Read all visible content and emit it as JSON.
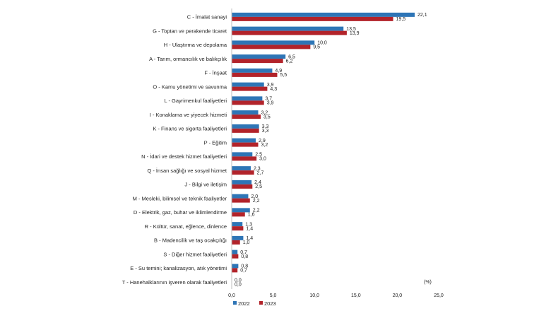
{
  "chart_data": {
    "type": "bar",
    "orientation": "horizontal",
    "categories": [
      "C - İmalat sanayi",
      "G - Toptan ve perakende ticaret",
      "H - Ulaştırma ve depolama",
      "A - Tarım, ormancılık ve balıkçılık",
      "F - İnşaat",
      "O - Kamu yönetimi ve savunma",
      "L - Gayrimenkul faaliyetleri",
      "I - Konaklama ve yiyecek hizmeti",
      "K - Finans ve sigorta faaliyetleri",
      "P - Eğitim",
      "N - İdari ve destek hizmet faaliyetleri",
      "Q - İnsan sağlığı ve sosyal hizmet",
      "J - Bilgi ve iletişim",
      "M - Mesleki, bilimsel ve teknik faaliyetler",
      "D - Elektrik, gaz, buhar ve iklimlendirme",
      "R - Kültür, sanat, eğlence, dinlence",
      "B - Madencilik ve taş ocakçılığı",
      "S - Diğer hizmet faaliyetleri",
      "E - Su temini; kanalizasyon, atık yönetimi",
      "T - Hanehalklarının işveren olarak faaliyetleri"
    ],
    "series": [
      {
        "name": "2022",
        "color": "#2e75b6",
        "values": [
          22.1,
          13.5,
          10.0,
          6.5,
          4.9,
          3.9,
          3.7,
          3.2,
          3.3,
          2.9,
          2.5,
          2.3,
          2.4,
          2.0,
          2.2,
          1.3,
          1.4,
          0.7,
          0.8,
          0.0
        ],
        "labels": [
          "22,1",
          "13,5",
          "10,0",
          "6,5",
          "4,9",
          "3,9",
          "3,7",
          "3,2",
          "3,3",
          "2,9",
          "2,5",
          "2,3",
          "2,4",
          "2,0",
          "2,2",
          "1,3",
          "1,4",
          "0,7",
          "0,8",
          "0,0"
        ]
      },
      {
        "name": "2023",
        "color": "#b2232a",
        "values": [
          19.5,
          13.9,
          9.5,
          6.2,
          5.5,
          4.3,
          3.9,
          3.5,
          3.3,
          3.2,
          3.0,
          2.7,
          2.5,
          2.2,
          1.6,
          1.4,
          1.0,
          0.8,
          0.7,
          0.0
        ],
        "labels": [
          "19,5",
          "13,9",
          "9,5",
          "6,2",
          "5,5",
          "4,3",
          "3,9",
          "3,5",
          "3,3",
          "3,2",
          "3,0",
          "2,7",
          "2,5",
          "2,2",
          "1,6",
          "1,4",
          "1,0",
          "0,8",
          "0,7",
          "0,0"
        ]
      }
    ],
    "xlim": [
      0,
      25
    ],
    "x_ticks": [
      0,
      5,
      10,
      15,
      20,
      25
    ],
    "x_tick_labels": [
      "0,0",
      "5,0",
      "10,0",
      "15,0",
      "20,0",
      "25,0"
    ],
    "unit_label": "(%)",
    "legend_position": "bottom-left",
    "grid": false
  }
}
